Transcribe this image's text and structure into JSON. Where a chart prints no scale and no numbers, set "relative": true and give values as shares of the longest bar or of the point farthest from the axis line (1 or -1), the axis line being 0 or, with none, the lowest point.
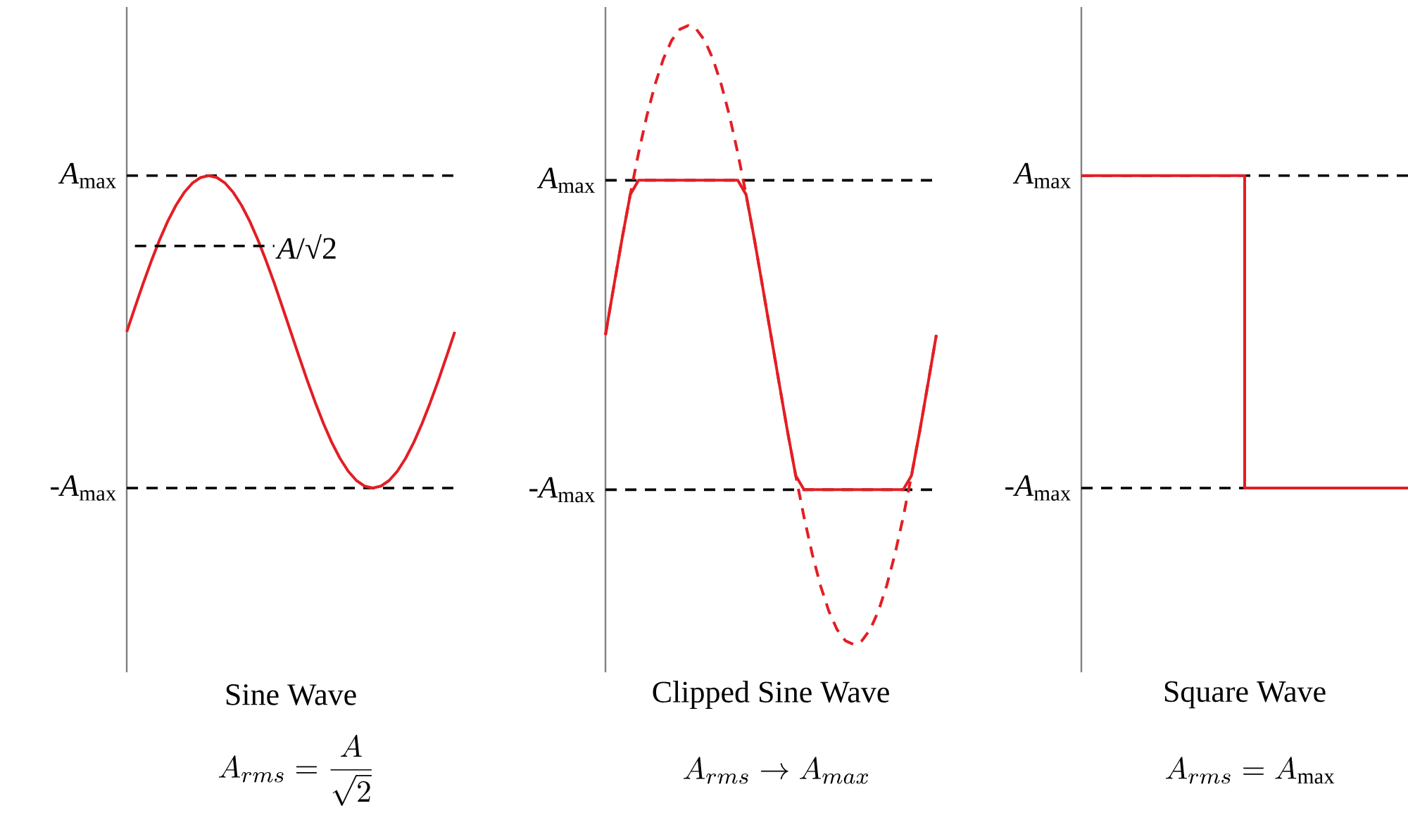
{
  "chart_data": [
    {
      "type": "line",
      "relative": true,
      "xlabel": "Sine Wave",
      "annotations": [
        "*A*/√2",
        "A_{rms} = \\frac{A}{\\sqrt{2}}"
      ],
      "categories": [
        null,
        null,
        null,
        null,
        null,
        null,
        null,
        null,
        null,
        null,
        null,
        null,
        null,
        null,
        null,
        null,
        null,
        null,
        null,
        null,
        null,
        null,
        null,
        null,
        null,
        null,
        null,
        null,
        null,
        null,
        null,
        null,
        null,
        null,
        null,
        null,
        null,
        null,
        null,
        null,
        null
      ],
      "ref_lines": [
        {
          "axis": "y",
          "value": 1,
          "label": "*A*$_{max}$",
          "color": "#000000",
          "line_style": "dashed"
        },
        {
          "axis": "y",
          "value": 0,
          "label": "-*A*$_{max}$",
          "color": "#000000",
          "line_style": "dashed"
        }
      ],
      "series": [
        {
          "color": "#e31e24",
          "line_style": "solid",
          "values": [
            0.5,
            0.578,
            0.655,
            0.727,
            0.794,
            0.854,
            0.905,
            0.946,
            0.976,
            0.994,
            1,
            0.994,
            0.976,
            0.946,
            0.905,
            0.854,
            0.794,
            0.727,
            0.655,
            0.578,
            0.5,
            0.422,
            0.345,
            0.273,
            0.206,
            0.146,
            0.095,
            0.054,
            0.024,
            0.006,
            0,
            0.006,
            0.024,
            0.054,
            0.095,
            0.146,
            0.206,
            0.273,
            0.345,
            0.422,
            0.5
          ]
        },
        {
          "color": "#000000",
          "line_style": "dashed",
          "values": [
            null,
            0.775,
            0.775,
            0.775,
            0.775,
            0.775,
            0.775,
            0.775,
            0.775,
            0.775,
            0.775,
            0.775,
            0.775,
            0.775,
            0.775,
            0.775,
            0.775,
            0.775,
            0.775,
            null,
            null,
            null,
            null,
            null,
            null,
            null,
            null,
            null,
            null,
            null,
            null,
            null,
            null,
            null,
            null,
            null,
            null,
            null,
            null,
            null,
            null
          ]
        }
      ]
    },
    {
      "type": "line",
      "relative": true,
      "xlabel": "Clipped Sine Wave",
      "annotations": [
        "A_{rms} \\rightarrow A_{max}"
      ],
      "categories": [
        null,
        null,
        null,
        null,
        null,
        null,
        null,
        null,
        null,
        null,
        null,
        null,
        null,
        null,
        null,
        null,
        null,
        null,
        null,
        null,
        null,
        null,
        null,
        null,
        null,
        null,
        null,
        null,
        null,
        null,
        null,
        null,
        null,
        null,
        null,
        null,
        null,
        null,
        null,
        null,
        null
      ],
      "ref_lines": [
        {
          "axis": "y",
          "value": 0.75,
          "label": "*A*$_{max}$",
          "color": "#000000",
          "line_style": "dashed"
        },
        {
          "axis": "y",
          "value": 0.25,
          "label": "-*A*$_{max}$",
          "color": "#000000",
          "line_style": "dashed"
        }
      ],
      "series": [
        {
          "color": "#e31e24",
          "line_style": "dashed",
          "values": [
            0.5,
            0.578,
            0.655,
            0.727,
            0.794,
            0.854,
            0.905,
            0.946,
            0.976,
            0.994,
            1,
            0.994,
            0.976,
            0.946,
            0.905,
            0.854,
            0.794,
            0.727,
            0.655,
            0.578,
            0.5,
            0.422,
            0.345,
            0.273,
            0.206,
            0.146,
            0.095,
            0.054,
            0.024,
            0.006,
            0,
            0.006,
            0.024,
            0.054,
            0.095,
            0.146,
            0.206,
            0.273,
            0.345,
            0.422,
            0.5
          ]
        },
        {
          "color": "#e31e24",
          "line_style": "solid",
          "values": [
            0.5,
            0.578,
            0.655,
            0.727,
            0.75,
            0.75,
            0.75,
            0.75,
            0.75,
            0.75,
            0.75,
            0.75,
            0.75,
            0.75,
            0.75,
            0.75,
            0.75,
            0.727,
            0.655,
            0.578,
            0.5,
            0.422,
            0.345,
            0.273,
            0.25,
            0.25,
            0.25,
            0.25,
            0.25,
            0.25,
            0.25,
            0.25,
            0.25,
            0.25,
            0.25,
            0.25,
            0.25,
            0.273,
            0.345,
            0.422,
            0.5
          ]
        }
      ]
    },
    {
      "type": "step",
      "relative": true,
      "xlabel": "Square Wave",
      "annotations": [
        "A_{rms} = A_{\\max}"
      ],
      "categories": [
        null,
        null,
        null
      ],
      "ref_lines": [
        {
          "axis": "y",
          "value": 1,
          "label": "*A*$_{max}$",
          "color": "#000000",
          "line_style": "dashed"
        },
        {
          "axis": "y",
          "value": 0,
          "label": "-*A*$_{max}$",
          "color": "#000000",
          "line_style": "dashed"
        }
      ],
      "series": [
        {
          "color": "#e31e24",
          "line_style": "solid",
          "values": [
            1,
            0,
            0
          ]
        }
      ]
    }
  ]
}
